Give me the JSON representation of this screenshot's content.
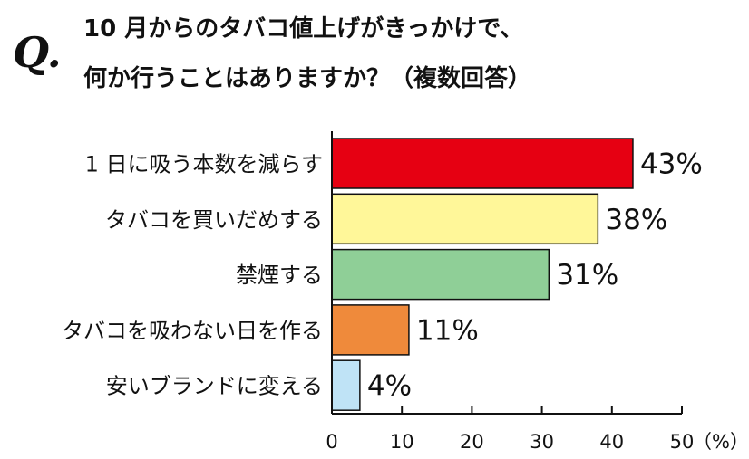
{
  "question": {
    "mark": "Q.",
    "line1": "10 月からのタバコ値上げがきっかけで、",
    "line2": "何か行うことはありますか？（複数回答）"
  },
  "chart_data": {
    "type": "bar",
    "orientation": "horizontal",
    "categories": [
      "1 日に吸う本数を減らす",
      "タバコを買いだめする",
      "禁煙する",
      "タバコを吸わない日を作る",
      "安いブランドに変える"
    ],
    "values": [
      43,
      38,
      31,
      11,
      4
    ],
    "value_labels": [
      "43%",
      "38%",
      "31%",
      "11%",
      "4%"
    ],
    "colors": [
      "#e60012",
      "#fff799",
      "#8fcf97",
      "#ef8a3b",
      "#bfe3f6"
    ],
    "xlim": [
      0,
      50
    ],
    "xticks": [
      0,
      10,
      20,
      30,
      40,
      50
    ],
    "xunit": "（%）",
    "grid": false
  }
}
